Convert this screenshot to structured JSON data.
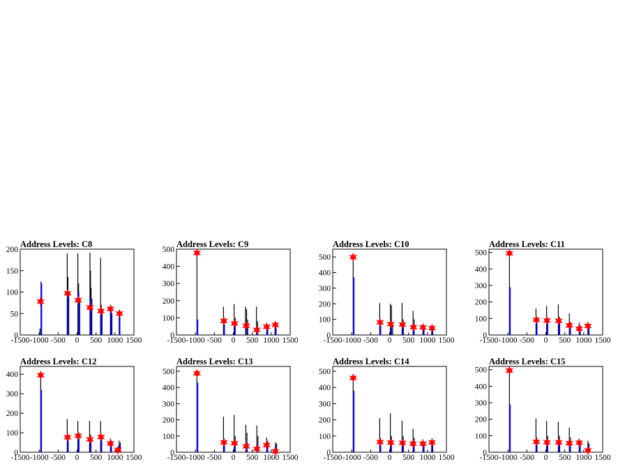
{
  "colors": {
    "background": "#ffffff",
    "histogram": "#000000",
    "fit": "#0000ff",
    "peak_marker": "#ff0000"
  },
  "chart_data": [
    {
      "type": "bar",
      "title": "Address Levels: C8",
      "xlim": [
        -1500,
        1500
      ],
      "ylim": [
        0,
        200
      ],
      "xticks": [
        -1500,
        -1000,
        -500,
        0,
        500,
        1000,
        1500
      ],
      "yticks": [
        0,
        50,
        100,
        150,
        200
      ],
      "spikes": [
        {
          "x": -980,
          "y": 15
        },
        {
          "x": -950,
          "y": 125
        },
        {
          "x": -935,
          "y": 120
        },
        {
          "x": -260,
          "y": 190
        },
        {
          "x": -240,
          "y": 135
        },
        {
          "x": -220,
          "y": 95
        },
        {
          "x": 20,
          "y": 190
        },
        {
          "x": 40,
          "y": 120
        },
        {
          "x": 70,
          "y": 85
        },
        {
          "x": 340,
          "y": 192
        },
        {
          "x": 355,
          "y": 150
        },
        {
          "x": 370,
          "y": 110
        },
        {
          "x": 390,
          "y": 85
        },
        {
          "x": 620,
          "y": 180
        },
        {
          "x": 640,
          "y": 70
        },
        {
          "x": 660,
          "y": 55
        },
        {
          "x": 880,
          "y": 70
        },
        {
          "x": 900,
          "y": 60
        },
        {
          "x": 920,
          "y": 50
        },
        {
          "x": 1110,
          "y": 52
        },
        {
          "x": 1130,
          "y": 45
        }
      ],
      "fit": [
        {
          "x": -945,
          "y": 120
        },
        {
          "x": -240,
          "y": 95
        },
        {
          "x": 40,
          "y": 100
        },
        {
          "x": 360,
          "y": 85
        },
        {
          "x": 640,
          "y": 60
        },
        {
          "x": 900,
          "y": 55
        },
        {
          "x": 1120,
          "y": 50
        }
      ],
      "peaks": [
        {
          "x": -965,
          "y": 78
        },
        {
          "x": -250,
          "y": 97
        },
        {
          "x": 30,
          "y": 81
        },
        {
          "x": 340,
          "y": 64
        },
        {
          "x": 630,
          "y": 56
        },
        {
          "x": 880,
          "y": 61
        },
        {
          "x": 1120,
          "y": 50
        }
      ]
    },
    {
      "type": "bar",
      "title": "Address Levels: C9",
      "xlim": [
        -1500,
        1500
      ],
      "ylim": [
        0,
        500
      ],
      "xticks": [
        -1500,
        -1000,
        -500,
        0,
        500,
        1000,
        1500
      ],
      "yticks": [
        0,
        100,
        200,
        300,
        400,
        500
      ],
      "spikes": [
        {
          "x": -960,
          "y": 495
        },
        {
          "x": -945,
          "y": 90
        },
        {
          "x": -260,
          "y": 165
        },
        {
          "x": -240,
          "y": 90
        },
        {
          "x": 20,
          "y": 180
        },
        {
          "x": 50,
          "y": 100
        },
        {
          "x": 320,
          "y": 165
        },
        {
          "x": 350,
          "y": 150
        },
        {
          "x": 380,
          "y": 90
        },
        {
          "x": 610,
          "y": 165
        },
        {
          "x": 640,
          "y": 80
        },
        {
          "x": 880,
          "y": 70
        },
        {
          "x": 910,
          "y": 55
        },
        {
          "x": 1100,
          "y": 60
        },
        {
          "x": 1130,
          "y": 50
        }
      ],
      "fit": [
        {
          "x": -945,
          "y": 90
        },
        {
          "x": -240,
          "y": 60
        },
        {
          "x": 40,
          "y": 70
        },
        {
          "x": 360,
          "y": 60
        },
        {
          "x": 640,
          "y": 40
        },
        {
          "x": 900,
          "y": 50
        },
        {
          "x": 1120,
          "y": 40
        }
      ],
      "peaks": [
        {
          "x": -960,
          "y": 478
        },
        {
          "x": -250,
          "y": 82
        },
        {
          "x": 30,
          "y": 67
        },
        {
          "x": 340,
          "y": 54
        },
        {
          "x": 620,
          "y": 30
        },
        {
          "x": 880,
          "y": 48
        },
        {
          "x": 1110,
          "y": 59
        }
      ]
    },
    {
      "type": "bar",
      "title": "Address Levels: C10",
      "xlim": [
        -1500,
        1500
      ],
      "ylim": [
        0,
        550
      ],
      "xticks": [
        -1500,
        -1000,
        -500,
        0,
        500,
        1000,
        1500
      ],
      "yticks": [
        0,
        100,
        200,
        300,
        400,
        500
      ],
      "spikes": [
        {
          "x": -960,
          "y": 520
        },
        {
          "x": -945,
          "y": 370
        },
        {
          "x": -260,
          "y": 205
        },
        {
          "x": -240,
          "y": 90
        },
        {
          "x": 20,
          "y": 200
        },
        {
          "x": 50,
          "y": 190
        },
        {
          "x": 80,
          "y": 80
        },
        {
          "x": 330,
          "y": 205
        },
        {
          "x": 360,
          "y": 100
        },
        {
          "x": 620,
          "y": 155
        },
        {
          "x": 650,
          "y": 100
        },
        {
          "x": 880,
          "y": 70
        },
        {
          "x": 910,
          "y": 60
        },
        {
          "x": 1110,
          "y": 55
        },
        {
          "x": 1140,
          "y": 45
        }
      ],
      "fit": [
        {
          "x": -945,
          "y": 365
        },
        {
          "x": -240,
          "y": 75
        },
        {
          "x": 40,
          "y": 70
        },
        {
          "x": 360,
          "y": 70
        },
        {
          "x": 640,
          "y": 50
        },
        {
          "x": 900,
          "y": 50
        },
        {
          "x": 1120,
          "y": 40
        }
      ],
      "peaks": [
        {
          "x": -960,
          "y": 499
        },
        {
          "x": -250,
          "y": 81
        },
        {
          "x": 30,
          "y": 70
        },
        {
          "x": 340,
          "y": 67
        },
        {
          "x": 630,
          "y": 50
        },
        {
          "x": 880,
          "y": 49
        },
        {
          "x": 1120,
          "y": 44
        }
      ]
    },
    {
      "type": "bar",
      "title": "Address Levels: C11",
      "xlim": [
        -1500,
        1500
      ],
      "ylim": [
        0,
        520
      ],
      "xticks": [
        -1500,
        -1000,
        -500,
        0,
        500,
        1000,
        1500
      ],
      "yticks": [
        0,
        100,
        200,
        300,
        400,
        500
      ],
      "spikes": [
        {
          "x": -960,
          "y": 515
        },
        {
          "x": -945,
          "y": 290
        },
        {
          "x": -260,
          "y": 160
        },
        {
          "x": -240,
          "y": 100
        },
        {
          "x": 20,
          "y": 175
        },
        {
          "x": 50,
          "y": 100
        },
        {
          "x": 330,
          "y": 185
        },
        {
          "x": 360,
          "y": 110
        },
        {
          "x": 620,
          "y": 130
        },
        {
          "x": 650,
          "y": 80
        },
        {
          "x": 880,
          "y": 75
        },
        {
          "x": 910,
          "y": 60
        },
        {
          "x": 1110,
          "y": 60
        },
        {
          "x": 1140,
          "y": 50
        }
      ],
      "fit": [
        {
          "x": -945,
          "y": 285
        },
        {
          "x": -240,
          "y": 80
        },
        {
          "x": 40,
          "y": 80
        },
        {
          "x": 360,
          "y": 80
        },
        {
          "x": 640,
          "y": 55
        },
        {
          "x": 900,
          "y": 50
        },
        {
          "x": 1120,
          "y": 45
        }
      ],
      "peaks": [
        {
          "x": -960,
          "y": 495
        },
        {
          "x": -250,
          "y": 92
        },
        {
          "x": 30,
          "y": 88
        },
        {
          "x": 340,
          "y": 86
        },
        {
          "x": 620,
          "y": 58
        },
        {
          "x": 880,
          "y": 38
        },
        {
          "x": 1110,
          "y": 55
        }
      ]
    },
    {
      "type": "bar",
      "title": "Address Levels: C12",
      "xlim": [
        -1500,
        1500
      ],
      "ylim": [
        0,
        440
      ],
      "xticks": [
        -1500,
        -1000,
        -500,
        0,
        500,
        1000,
        1500
      ],
      "yticks": [
        0,
        100,
        200,
        300,
        400
      ],
      "spikes": [
        {
          "x": -960,
          "y": 410
        },
        {
          "x": -945,
          "y": 320
        },
        {
          "x": -260,
          "y": 170
        },
        {
          "x": -240,
          "y": 90
        },
        {
          "x": 20,
          "y": 160
        },
        {
          "x": 50,
          "y": 100
        },
        {
          "x": 330,
          "y": 160
        },
        {
          "x": 360,
          "y": 90
        },
        {
          "x": 620,
          "y": 160
        },
        {
          "x": 650,
          "y": 90
        },
        {
          "x": 880,
          "y": 70
        },
        {
          "x": 910,
          "y": 60
        },
        {
          "x": 1110,
          "y": 60
        },
        {
          "x": 1140,
          "y": 50
        }
      ],
      "fit": [
        {
          "x": -945,
          "y": 320
        },
        {
          "x": -240,
          "y": 80
        },
        {
          "x": 40,
          "y": 80
        },
        {
          "x": 360,
          "y": 70
        },
        {
          "x": 640,
          "y": 75
        },
        {
          "x": 900,
          "y": 50
        },
        {
          "x": 1120,
          "y": 40
        }
      ],
      "peaks": [
        {
          "x": -960,
          "y": 395
        },
        {
          "x": -250,
          "y": 77
        },
        {
          "x": 30,
          "y": 84
        },
        {
          "x": 340,
          "y": 66
        },
        {
          "x": 630,
          "y": 78
        },
        {
          "x": 880,
          "y": 45
        },
        {
          "x": 1080,
          "y": 12
        }
      ]
    },
    {
      "type": "bar",
      "title": "Address Levels: C13",
      "xlim": [
        -1500,
        1500
      ],
      "ylim": [
        0,
        530
      ],
      "xticks": [
        -1500,
        -1000,
        -500,
        0,
        500,
        1000,
        1500
      ],
      "yticks": [
        0,
        100,
        200,
        300,
        400,
        500
      ],
      "spikes": [
        {
          "x": -960,
          "y": 510
        },
        {
          "x": -945,
          "y": 430
        },
        {
          "x": -260,
          "y": 220
        },
        {
          "x": -240,
          "y": 85
        },
        {
          "x": 20,
          "y": 230
        },
        {
          "x": 50,
          "y": 100
        },
        {
          "x": 330,
          "y": 170
        },
        {
          "x": 360,
          "y": 120
        },
        {
          "x": 620,
          "y": 165
        },
        {
          "x": 650,
          "y": 100
        },
        {
          "x": 880,
          "y": 90
        },
        {
          "x": 910,
          "y": 70
        },
        {
          "x": 1110,
          "y": 60
        },
        {
          "x": 1140,
          "y": 55
        }
      ],
      "fit": [
        {
          "x": -945,
          "y": 430
        },
        {
          "x": -240,
          "y": 60
        },
        {
          "x": 40,
          "y": 60
        },
        {
          "x": 360,
          "y": 60
        },
        {
          "x": 640,
          "y": 50
        },
        {
          "x": 900,
          "y": 55
        },
        {
          "x": 1120,
          "y": 40
        }
      ],
      "peaks": [
        {
          "x": -960,
          "y": 487
        },
        {
          "x": -250,
          "y": 61
        },
        {
          "x": 30,
          "y": 56
        },
        {
          "x": 340,
          "y": 37
        },
        {
          "x": 620,
          "y": 21
        },
        {
          "x": 880,
          "y": 44
        },
        {
          "x": 1110,
          "y": 6
        }
      ]
    },
    {
      "type": "bar",
      "title": "Address Levels: C14",
      "xlim": [
        -1500,
        1500
      ],
      "ylim": [
        0,
        530
      ],
      "xticks": [
        -1500,
        -1000,
        -500,
        0,
        500,
        1000,
        1500
      ],
      "yticks": [
        0,
        100,
        200,
        300,
        400,
        500
      ],
      "spikes": [
        {
          "x": -960,
          "y": 480
        },
        {
          "x": -945,
          "y": 380
        },
        {
          "x": -260,
          "y": 210
        },
        {
          "x": -240,
          "y": 90
        },
        {
          "x": 20,
          "y": 240
        },
        {
          "x": 50,
          "y": 100
        },
        {
          "x": 330,
          "y": 195
        },
        {
          "x": 360,
          "y": 100
        },
        {
          "x": 620,
          "y": 145
        },
        {
          "x": 650,
          "y": 90
        },
        {
          "x": 880,
          "y": 80
        },
        {
          "x": 910,
          "y": 60
        },
        {
          "x": 1110,
          "y": 70
        },
        {
          "x": 1140,
          "y": 55
        }
      ],
      "fit": [
        {
          "x": -945,
          "y": 375
        },
        {
          "x": -240,
          "y": 60
        },
        {
          "x": 40,
          "y": 60
        },
        {
          "x": 360,
          "y": 60
        },
        {
          "x": 640,
          "y": 55
        },
        {
          "x": 900,
          "y": 55
        },
        {
          "x": 1120,
          "y": 50
        }
      ],
      "peaks": [
        {
          "x": -960,
          "y": 459
        },
        {
          "x": -250,
          "y": 63
        },
        {
          "x": 30,
          "y": 60
        },
        {
          "x": 340,
          "y": 58
        },
        {
          "x": 620,
          "y": 53
        },
        {
          "x": 880,
          "y": 53
        },
        {
          "x": 1120,
          "y": 61
        }
      ]
    },
    {
      "type": "bar",
      "title": "Address Levels: C15",
      "xlim": [
        -1500,
        1500
      ],
      "ylim": [
        0,
        520
      ],
      "xticks": [
        -1500,
        -1000,
        -500,
        0,
        500,
        1000,
        1500
      ],
      "yticks": [
        0,
        100,
        200,
        300,
        400,
        500
      ],
      "spikes": [
        {
          "x": -960,
          "y": 515
        },
        {
          "x": -945,
          "y": 290
        },
        {
          "x": -260,
          "y": 205
        },
        {
          "x": -240,
          "y": 90
        },
        {
          "x": 20,
          "y": 190
        },
        {
          "x": 50,
          "y": 100
        },
        {
          "x": 330,
          "y": 185
        },
        {
          "x": 360,
          "y": 100
        },
        {
          "x": 620,
          "y": 150
        },
        {
          "x": 650,
          "y": 90
        },
        {
          "x": 880,
          "y": 80
        },
        {
          "x": 910,
          "y": 60
        },
        {
          "x": 1110,
          "y": 70
        },
        {
          "x": 1140,
          "y": 55
        }
      ],
      "fit": [
        {
          "x": -945,
          "y": 285
        },
        {
          "x": -240,
          "y": 60
        },
        {
          "x": 40,
          "y": 60
        },
        {
          "x": 360,
          "y": 60
        },
        {
          "x": 640,
          "y": 55
        },
        {
          "x": 900,
          "y": 55
        },
        {
          "x": 1120,
          "y": 45
        }
      ],
      "peaks": [
        {
          "x": -960,
          "y": 495
        },
        {
          "x": -250,
          "y": 63
        },
        {
          "x": 30,
          "y": 60
        },
        {
          "x": 340,
          "y": 60
        },
        {
          "x": 620,
          "y": 55
        },
        {
          "x": 880,
          "y": 58
        },
        {
          "x": 1110,
          "y": 11
        }
      ]
    }
  ]
}
